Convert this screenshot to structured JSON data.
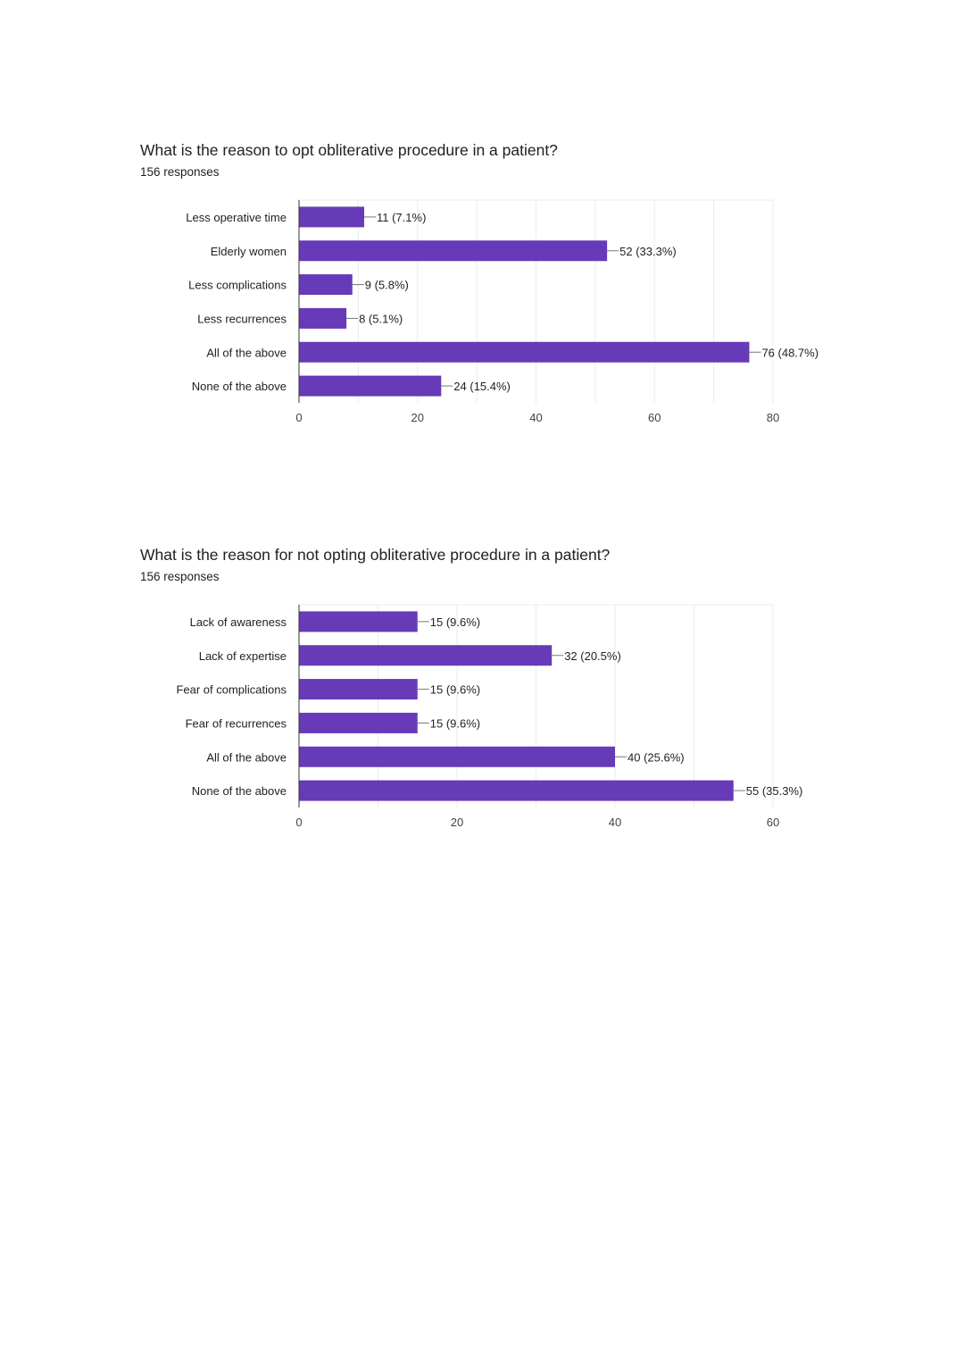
{
  "colors": {
    "bar": "#673ab7",
    "grid": "#ebebeb",
    "axis": "#333333",
    "text": "#222222"
  },
  "questions": [
    {
      "title": "What is the reason to opt obliterative procedure in a patient?",
      "responses": "156 responses"
    },
    {
      "title": "What is the reason for not opting obliterative procedure in a patient?",
      "responses": "156 responses"
    }
  ],
  "chart_data": [
    {
      "type": "bar",
      "orientation": "horizontal",
      "categories": [
        "Less operative time",
        "Elderly women",
        "Less complications",
        "Less recurrences",
        "All of the above",
        "None of the above"
      ],
      "values": [
        11,
        52,
        9,
        8,
        76,
        24
      ],
      "data_labels": [
        "11 (7.1%)",
        "52 (33.3%)",
        "9 (5.8%)",
        "8 (5.1%)",
        "76 (48.7%)",
        "24 (15.4%)"
      ],
      "xlim": [
        0,
        80
      ],
      "xticks": [
        0,
        20,
        40,
        60,
        80
      ],
      "grid": true
    },
    {
      "type": "bar",
      "orientation": "horizontal",
      "categories": [
        "Lack of awareness",
        "Lack of expertise",
        "Fear of complications",
        "Fear of recurrences",
        "All of the above",
        "None of the above"
      ],
      "values": [
        15,
        32,
        15,
        15,
        40,
        55
      ],
      "data_labels": [
        "15 (9.6%)",
        "32 (20.5%)",
        "15 (9.6%)",
        "15 (9.6%)",
        "40 (25.6%)",
        "55 (35.3%)"
      ],
      "xlim": [
        0,
        60
      ],
      "xticks": [
        0,
        20,
        40,
        60
      ],
      "grid": true
    }
  ]
}
